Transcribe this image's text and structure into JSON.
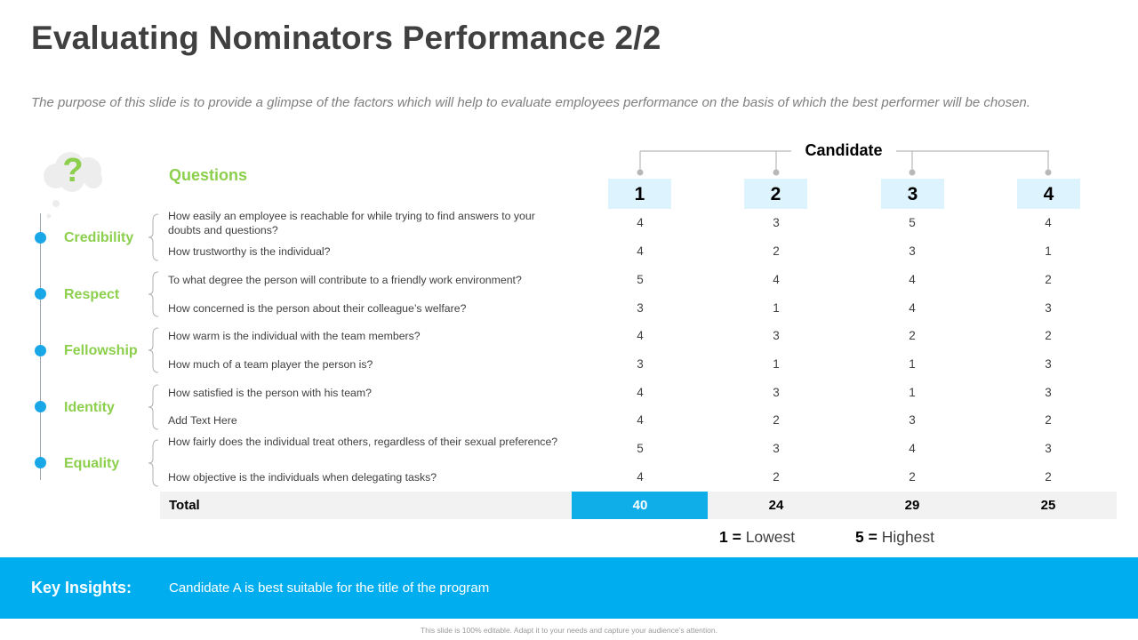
{
  "title": "Evaluating Nominators Performance 2/2",
  "subtitle": "The purpose of this slide is to provide a glimpse of the factors which will help to evaluate employees performance on the basis of which the best performer will be chosen.",
  "questions_header": "Questions",
  "question_mark": "?",
  "candidate_header": "Candidate",
  "candidates": [
    "1",
    "2",
    "3",
    "4"
  ],
  "categories": [
    "Credibility",
    "Respect",
    "Fellowship",
    "Identity",
    "Equality"
  ],
  "rows": [
    {
      "question": "How easily an employee is reachable for while trying to find answers to your doubts and questions?",
      "scores": [
        "4",
        "3",
        "5",
        "4"
      ]
    },
    {
      "question": "How trustworthy is the individual?",
      "scores": [
        "4",
        "2",
        "3",
        "1"
      ]
    },
    {
      "question": "To what degree the person will contribute to a friendly work environment?",
      "scores": [
        "5",
        "4",
        "4",
        "2"
      ]
    },
    {
      "question": "How concerned is the person about their colleague’s welfare?",
      "scores": [
        "3",
        "1",
        "4",
        "3"
      ]
    },
    {
      "question": "How warm is the individual  with the team members?",
      "scores": [
        "4",
        "3",
        "2",
        "2"
      ]
    },
    {
      "question": "How much of a team player the person is?",
      "scores": [
        "3",
        "1",
        "1",
        "3"
      ]
    },
    {
      "question": "How satisfied is the person with his team?",
      "scores": [
        "4",
        "3",
        "1",
        "3"
      ]
    },
    {
      "question": "Add Text Here",
      "scores": [
        "4",
        "2",
        "3",
        "2"
      ]
    },
    {
      "question": "How fairly does the individual  treat others, regardless of their sexual preference?",
      "scores": [
        "5",
        "3",
        "4",
        "3"
      ]
    },
    {
      "question": "How objective is the individuals  when delegating tasks?",
      "scores": [
        "4",
        "2",
        "2",
        "2"
      ]
    }
  ],
  "total": {
    "label": "Total",
    "values": [
      "40",
      "24",
      "29",
      "25"
    ]
  },
  "legend": {
    "low_key": "1 =",
    "low_text": " Lowest",
    "high_key": "5 =",
    "high_text": " Highest"
  },
  "insight": {
    "label": "Key Insights:",
    "text": "Candidate A  is best suitable for the title of the program"
  },
  "footer": "This slide is 100% editable. Adapt it to your needs and capture your audience’s attention.",
  "colors": {
    "accent_blue": "#00aeef",
    "accent_green": "#8ccf4c",
    "candidate_box": "#ddf3fd"
  }
}
